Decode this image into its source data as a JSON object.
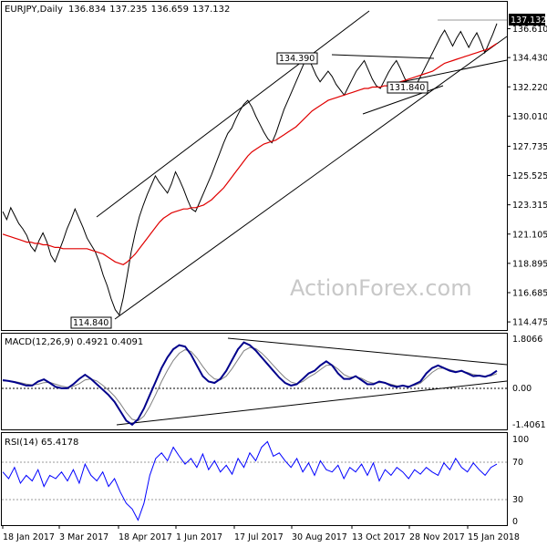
{
  "chart_data": [
    {
      "type": "line",
      "panel": "price",
      "title": "EURJPY,Daily",
      "ohlc": {
        "open": "136.834",
        "high": "137.235",
        "low": "136.659",
        "close": "137.132"
      },
      "ylim": [
        114.0,
        138.5
      ],
      "y_ticks": [
        "136.610",
        "134.430",
        "132.220",
        "130.010",
        "127.735",
        "125.525",
        "123.315",
        "121.105",
        "118.895",
        "116.685",
        "114.475"
      ],
      "last_price_label": "137.132",
      "annotations": [
        "134.390",
        "131.840",
        "114.840"
      ],
      "series": [
        {
          "color": "#000000",
          "values": [
            122.8,
            122.2,
            123.1,
            122.5,
            121.9,
            121.5,
            121.0,
            120.2,
            119.8,
            120.6,
            121.2,
            120.5,
            119.5,
            119.0,
            119.8,
            120.6,
            121.5,
            122.2,
            123.0,
            122.3,
            121.6,
            120.8,
            120.3,
            119.8,
            119.0,
            118.0,
            117.2,
            116.2,
            115.4,
            115.0,
            116.3,
            118.0,
            119.8,
            121.2,
            122.4,
            123.3,
            124.1,
            124.8,
            125.5,
            125.0,
            124.6,
            124.2,
            124.9,
            125.8,
            125.2,
            124.5,
            123.7,
            123.0,
            122.8,
            123.5,
            124.2,
            124.9,
            125.6,
            126.4,
            127.2,
            128.0,
            128.7,
            129.1,
            129.8,
            130.4,
            130.9,
            131.2,
            130.7,
            130.0,
            129.4,
            128.8,
            128.3,
            128.0,
            128.7,
            129.6,
            130.5,
            131.2,
            131.9,
            132.6,
            133.3,
            134.0,
            134.4,
            133.8,
            133.1,
            132.6,
            133.0,
            133.4,
            133.0,
            132.4,
            132.0,
            131.6,
            132.2,
            132.8,
            133.4,
            133.8,
            134.2,
            133.5,
            132.8,
            132.3,
            132.1,
            132.7,
            133.3,
            133.8,
            134.2,
            133.6,
            132.9,
            132.3,
            131.9,
            132.4,
            133.0,
            133.6,
            134.2,
            134.8,
            135.4,
            136.0,
            136.5,
            135.9,
            135.3,
            135.9,
            136.4,
            135.8,
            135.2,
            135.8,
            136.3,
            135.6,
            134.8,
            135.5,
            136.2,
            137.0
          ]
        },
        {
          "color": "#e00000",
          "values": [
            121.1,
            121.0,
            120.9,
            120.8,
            120.7,
            120.6,
            120.5,
            120.5,
            120.4,
            120.4,
            120.3,
            120.3,
            120.2,
            120.1,
            120.1,
            120.0,
            120.0,
            120.0,
            120.0,
            120.0,
            120.0,
            120.0,
            119.9,
            119.8,
            119.7,
            119.6,
            119.4,
            119.2,
            119.0,
            118.9,
            118.8,
            119.0,
            119.3,
            119.6,
            120.0,
            120.4,
            120.8,
            121.2,
            121.6,
            122.0,
            122.3,
            122.5,
            122.7,
            122.8,
            122.9,
            123.0,
            123.0,
            123.1,
            123.1,
            123.2,
            123.3,
            123.5,
            123.7,
            124.0,
            124.3,
            124.6,
            125.0,
            125.4,
            125.8,
            126.2,
            126.6,
            127.0,
            127.3,
            127.5,
            127.7,
            127.9,
            128.0,
            128.1,
            128.2,
            128.4,
            128.6,
            128.8,
            129.0,
            129.2,
            129.5,
            129.8,
            130.1,
            130.4,
            130.6,
            130.8,
            131.0,
            131.2,
            131.3,
            131.4,
            131.5,
            131.6,
            131.7,
            131.8,
            131.9,
            132.0,
            132.1,
            132.1,
            132.2,
            132.2,
            132.2,
            132.3,
            132.3,
            132.4,
            132.5,
            132.6,
            132.7,
            132.8,
            132.9,
            133.0,
            133.1,
            133.2,
            133.3,
            133.4,
            133.6,
            133.8,
            134.0,
            134.1,
            134.2,
            134.3,
            134.4,
            134.5,
            134.6,
            134.7,
            134.8,
            134.9,
            135.0,
            135.1,
            135.3,
            135.5
          ]
        }
      ]
    },
    {
      "type": "line",
      "panel": "macd",
      "title": "MACD(12,26,9) 0.4921 0.4091",
      "ylim": [
        -1.4061,
        1.8066
      ],
      "y_ticks": [
        "1.8066",
        "0.00",
        "-1.4061"
      ],
      "series": [
        {
          "color": "#00008b",
          "values": [
            0.25,
            0.22,
            0.18,
            0.12,
            0.05,
            0.05,
            0.2,
            0.28,
            0.15,
            0.0,
            -0.05,
            -0.05,
            0.1,
            0.3,
            0.45,
            0.3,
            0.1,
            -0.1,
            -0.3,
            -0.55,
            -0.9,
            -1.25,
            -1.4,
            -1.2,
            -0.8,
            -0.3,
            0.2,
            0.7,
            1.1,
            1.4,
            1.55,
            1.5,
            1.2,
            0.8,
            0.4,
            0.2,
            0.15,
            0.3,
            0.6,
            1.0,
            1.4,
            1.65,
            1.55,
            1.35,
            1.1,
            0.85,
            0.6,
            0.35,
            0.15,
            0.05,
            0.1,
            0.3,
            0.5,
            0.6,
            0.8,
            0.95,
            0.8,
            0.5,
            0.3,
            0.3,
            0.4,
            0.25,
            0.1,
            0.1,
            0.2,
            0.15,
            0.05,
            0.0,
            0.05,
            0.0,
            0.1,
            0.2,
            0.5,
            0.7,
            0.8,
            0.7,
            0.6,
            0.55,
            0.6,
            0.5,
            0.4,
            0.42,
            0.38,
            0.45,
            0.6
          ]
        },
        {
          "color": "#808080",
          "values": [
            0.22,
            0.22,
            0.2,
            0.16,
            0.11,
            0.08,
            0.1,
            0.16,
            0.17,
            0.1,
            0.03,
            -0.01,
            0.02,
            0.12,
            0.26,
            0.3,
            0.22,
            0.06,
            -0.12,
            -0.34,
            -0.62,
            -0.95,
            -1.2,
            -1.26,
            -1.08,
            -0.72,
            -0.28,
            0.2,
            0.62,
            0.98,
            1.25,
            1.38,
            1.32,
            1.08,
            0.76,
            0.48,
            0.3,
            0.26,
            0.4,
            0.68,
            1.02,
            1.34,
            1.46,
            1.42,
            1.26,
            1.04,
            0.8,
            0.56,
            0.34,
            0.18,
            0.12,
            0.2,
            0.36,
            0.48,
            0.64,
            0.8,
            0.82,
            0.66,
            0.46,
            0.36,
            0.38,
            0.32,
            0.2,
            0.14,
            0.16,
            0.16,
            0.1,
            0.04,
            0.04,
            0.02,
            0.06,
            0.14,
            0.34,
            0.54,
            0.68,
            0.7,
            0.64,
            0.58,
            0.58,
            0.54,
            0.46,
            0.43,
            0.4,
            0.41,
            0.49
          ]
        }
      ]
    },
    {
      "type": "line",
      "panel": "rsi",
      "title": "RSI(14) 65.4178",
      "ylim": [
        0,
        100
      ],
      "y_ticks": [
        "100",
        "70",
        "30",
        "0"
      ],
      "x_ticks": [
        "18 Jan 2017",
        "3 Mar 2017",
        "18 Apr 2017",
        "1 Jun 2017",
        "17 Jul 2017",
        "30 Aug 2017",
        "13 Oct 2017",
        "28 Nov 2017",
        "15 Jan 2018"
      ],
      "series": [
        {
          "color": "#0000ff",
          "values": [
            58,
            52,
            62,
            48,
            55,
            50,
            60,
            45,
            55,
            52,
            58,
            50,
            60,
            48,
            65,
            55,
            50,
            58,
            45,
            52,
            40,
            30,
            25,
            15,
            30,
            55,
            70,
            75,
            68,
            80,
            72,
            65,
            70,
            62,
            74,
            60,
            68,
            58,
            64,
            56,
            70,
            62,
            75,
            68,
            80,
            85,
            72,
            75,
            68,
            62,
            70,
            58,
            66,
            55,
            68,
            60,
            58,
            64,
            52,
            62,
            58,
            65,
            55,
            66,
            50,
            60,
            55,
            62,
            58,
            52,
            60,
            56,
            62,
            58,
            55,
            66,
            60,
            70,
            62,
            58,
            66,
            60,
            55,
            62,
            65
          ]
        }
      ]
    }
  ],
  "watermark": "ActionForex.com"
}
